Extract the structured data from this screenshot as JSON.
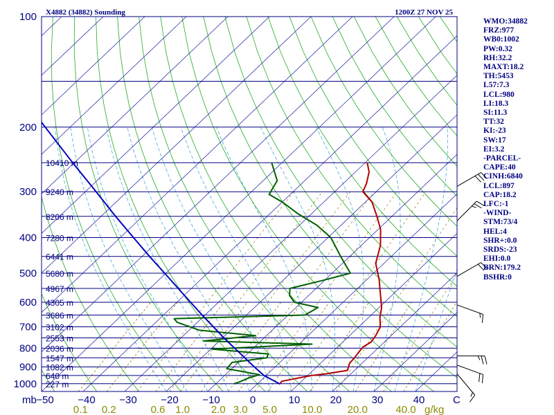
{
  "chart_data": {
    "type": "line",
    "title_left": "X4882 (34882) Sounding",
    "title_right": "1200Z 27 NOV 25",
    "pressure_axis": {
      "ticks": [
        100,
        200,
        300,
        400,
        500,
        600,
        700,
        800,
        900,
        1000
      ],
      "unit_label": "mb",
      "scale": "log",
      "ylim": [
        1050,
        100
      ]
    },
    "temperature_axis": {
      "ticks": [
        -50,
        -40,
        -30,
        -20,
        -10,
        0,
        10,
        20,
        30,
        40
      ],
      "tick_labels": [
        "−50",
        "−40",
        "−30",
        "−20",
        "−10",
        "0",
        "10",
        "20",
        "30",
        "40"
      ],
      "unit_label": "C",
      "xlim_at_1050mb": [
        -50,
        50
      ]
    },
    "mixing_ratio_axis": {
      "values": [
        0.1,
        0.2,
        0.6,
        1.0,
        2.0,
        3.0,
        5.0,
        10.0,
        20.0,
        40.0
      ],
      "labels": [
        "0.1",
        "0.2",
        "0.6",
        "1.0",
        "2.0",
        "3.0",
        "5.0",
        "10.0",
        "20.0",
        "40.0"
      ],
      "unit_label": "g/kg"
    },
    "height_labels": [
      {
        "p": 250,
        "label": "10410 m"
      },
      {
        "p": 300,
        "label": "9240 m"
      },
      {
        "p": 350,
        "label": "8206 m"
      },
      {
        "p": 400,
        "label": "7280 m"
      },
      {
        "p": 450,
        "label": "6441 m"
      },
      {
        "p": 500,
        "label": "5680 m"
      },
      {
        "p": 550,
        "label": "4967 m"
      },
      {
        "p": 600,
        "label": "4305 m"
      },
      {
        "p": 650,
        "label": "3686 m"
      },
      {
        "p": 700,
        "label": "3102 m"
      },
      {
        "p": 750,
        "label": "2553 m"
      },
      {
        "p": 800,
        "label": "2036 m"
      },
      {
        "p": 850,
        "label": "1547 m"
      },
      {
        "p": 900,
        "label": "1082 m"
      },
      {
        "p": 950,
        "label": "640 m"
      },
      {
        "p": 1000,
        "label": "227 m"
      }
    ],
    "series": [
      {
        "color": "#B00000",
        "points": [
          {
            "p": 1002,
            "t": 5.5
          },
          {
            "p": 985,
            "t": 5.2
          },
          {
            "p": 970,
            "t": 7.6
          },
          {
            "p": 950,
            "t": 11.0
          },
          {
            "p": 940,
            "t": 14.0
          },
          {
            "p": 920,
            "t": 18.3
          },
          {
            "p": 880,
            "t": 17.0
          },
          {
            "p": 850,
            "t": 16.8
          },
          {
            "p": 820,
            "t": 16.4
          },
          {
            "p": 795,
            "t": 16.1
          },
          {
            "p": 770,
            "t": 16.8
          },
          {
            "p": 740,
            "t": 16.3
          },
          {
            "p": 700,
            "t": 15.2
          },
          {
            "p": 660,
            "t": 12.7
          },
          {
            "p": 620,
            "t": 10.6
          },
          {
            "p": 570,
            "t": 6.9
          },
          {
            "p": 520,
            "t": 2.9
          },
          {
            "p": 470,
            "t": -2.0
          },
          {
            "p": 420,
            "t": -5.4
          },
          {
            "p": 380,
            "t": -9.4
          },
          {
            "p": 350,
            "t": -13.6
          },
          {
            "p": 320,
            "t": -18.4
          },
          {
            "p": 300,
            "t": -23.2
          },
          {
            "p": 285,
            "t": -24.4
          },
          {
            "p": 265,
            "t": -26.7
          },
          {
            "p": 250,
            "t": -29.5
          }
        ]
      },
      {
        "color": "#006000",
        "points": [
          {
            "p": 1002,
            "t": -5.6
          },
          {
            "p": 985,
            "t": -4.6
          },
          {
            "p": 965,
            "t": -3.6
          },
          {
            "p": 945,
            "t": -1.8
          },
          {
            "p": 910,
            "t": -11.2
          },
          {
            "p": 875,
            "t": -11.5
          },
          {
            "p": 850,
            "t": -4.3
          },
          {
            "p": 830,
            "t": -4.9
          },
          {
            "p": 805,
            "t": -19.7
          },
          {
            "p": 780,
            "t": 3.1
          },
          {
            "p": 765,
            "t": -23.8
          },
          {
            "p": 740,
            "t": -12.6
          },
          {
            "p": 715,
            "t": -27.5
          },
          {
            "p": 680,
            "t": -34.9
          },
          {
            "p": 665,
            "t": -36.5
          },
          {
            "p": 650,
            "t": -6.0
          },
          {
            "p": 620,
            "t": -4.7
          },
          {
            "p": 600,
            "t": -11.7
          },
          {
            "p": 575,
            "t": -14.6
          },
          {
            "p": 550,
            "t": -16.3
          },
          {
            "p": 525,
            "t": -10.8
          },
          {
            "p": 500,
            "t": -5.6
          },
          {
            "p": 450,
            "t": -12.2
          },
          {
            "p": 400,
            "t": -19.3
          },
          {
            "p": 370,
            "t": -25.8
          },
          {
            "p": 345,
            "t": -33.1
          },
          {
            "p": 320,
            "t": -40.0
          },
          {
            "p": 305,
            "t": -45.1
          },
          {
            "p": 280,
            "t": -46.6
          },
          {
            "p": 250,
            "t": -52.5
          }
        ]
      },
      {
        "color": "#0000C0",
        "points": [
          {
            "p": 1002,
            "t": 5.5
          },
          {
            "p": 950,
            "t": -0.5
          },
          {
            "p": 900,
            "t": -5.0
          },
          {
            "p": 850,
            "t": -9.6
          },
          {
            "p": 800,
            "t": -14.5
          },
          {
            "p": 750,
            "t": -19.7
          },
          {
            "p": 700,
            "t": -25.0
          },
          {
            "p": 650,
            "t": -30.7
          },
          {
            "p": 600,
            "t": -36.7
          },
          {
            "p": 550,
            "t": -43.2
          },
          {
            "p": 500,
            "t": -50.3
          },
          {
            "p": 450,
            "t": -58.2
          },
          {
            "p": 400,
            "t": -66.8
          },
          {
            "p": 350,
            "t": -76.5
          },
          {
            "p": 300,
            "t": -87.4
          },
          {
            "p": 250,
            "t": -100.4
          },
          {
            "p": 200,
            "t": -116.0
          },
          {
            "p": 150,
            "t": -136.0
          },
          {
            "p": 108,
            "t": -159.0
          }
        ]
      }
    ],
    "wind_barbs": [
      {
        "p": 290,
        "dir": 300,
        "spd": 30
      },
      {
        "p": 360,
        "dir": 315,
        "spd": 25
      },
      {
        "p": 510,
        "dir": 300,
        "spd": 20
      },
      {
        "p": 610,
        "dir": 250,
        "spd": 15
      },
      {
        "p": 840,
        "dir": 270,
        "spd": 25
      },
      {
        "p": 890,
        "dir": 250,
        "spd": 20
      },
      {
        "p": 940,
        "dir": 220,
        "spd": 15
      }
    ],
    "indices": [
      "WMO:34882",
      "FRZ:977",
      "WB0:1002",
      "PW:0.32",
      "RH:32.2",
      "MAXT:18.2",
      "TH:5453",
      "L57:7.3",
      "LCL:980",
      "LI:18.3",
      "SI:11.3",
      "TT:32",
      "KI:-23",
      "SW:17",
      "EI:3.2",
      "-PARCEL-",
      "CAPE:40",
      "CINH:6840",
      "LCL:897",
      "CAP:18.2",
      "LFC:-1",
      "-WIND-",
      "STM:73/4",
      "HEL:4",
      "SHR+:0.0",
      "SRDS:-23",
      "EHI:0.0",
      "BRN:179.2",
      "BSHR:0"
    ],
    "colors": {
      "frame": "#000080",
      "isobars": "#000080",
      "isotherms": "#3333AA",
      "dry_adiabats": "#22AA22",
      "moist_adiabats": "#44AADD",
      "mixing_ratio": "#8B7B00"
    }
  }
}
